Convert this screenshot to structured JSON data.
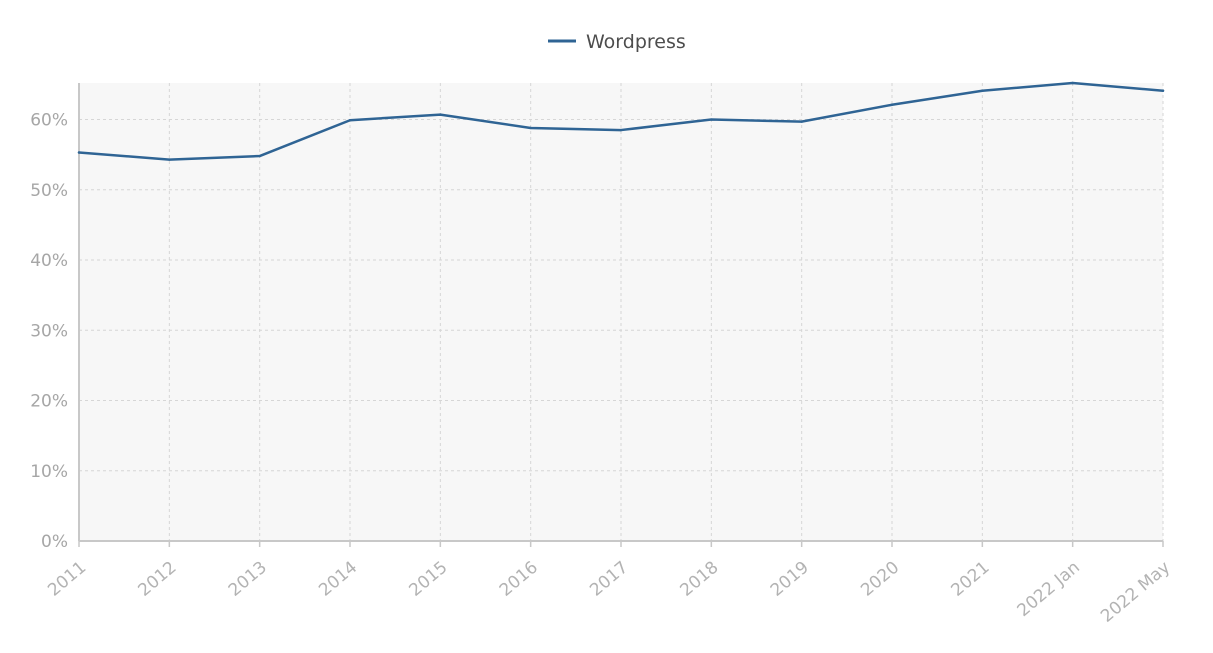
{
  "chart_data": {
    "type": "line",
    "categories": [
      "2011",
      "2012",
      "2013",
      "2014",
      "2015",
      "2016",
      "2017",
      "2018",
      "2019",
      "2020",
      "2021",
      "2022 Jan",
      "2022 May"
    ],
    "series": [
      {
        "name": "Wordpress",
        "values": [
          55.3,
          54.3,
          54.8,
          59.9,
          60.7,
          58.8,
          58.5,
          60.0,
          59.7,
          62.1,
          64.1,
          65.2,
          64.1
        ]
      }
    ],
    "y_ticks": [
      "0%",
      "10%",
      "20%",
      "30%",
      "40%",
      "50%",
      "60%"
    ],
    "ylim": [
      0,
      65.2
    ],
    "grid": true,
    "legend_position": "top-center",
    "colors": {
      "series": "#2f6494",
      "plot_background": "#f7f7f7",
      "grid": "#d6d6d6",
      "axis": "#c8c8c8",
      "tick_text": "#a6a6a6",
      "legend_text": "#4d4d4d"
    }
  }
}
